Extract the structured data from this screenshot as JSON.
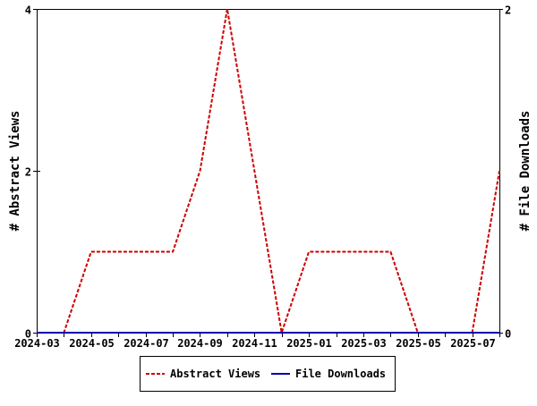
{
  "chart_data": {
    "type": "line",
    "title": "",
    "x": [
      "2024-03",
      "2024-04",
      "2024-05",
      "2024-06",
      "2024-07",
      "2024-08",
      "2024-09",
      "2024-10",
      "2024-11",
      "2024-12",
      "2025-01",
      "2025-02",
      "2025-03",
      "2025-04",
      "2025-05",
      "2025-06",
      "2025-07",
      "2025-08"
    ],
    "x_tick_labels": [
      "2024-03",
      "2024-05",
      "2024-07",
      "2024-09",
      "2024-11",
      "2025-01",
      "2025-03",
      "2025-05",
      "2025-07"
    ],
    "ylabel": "# Abstract Views",
    "y2label": "# File Downloads",
    "ylim": [
      0,
      4
    ],
    "y2lim": [
      0,
      2
    ],
    "y_ticks": [
      "0",
      "2",
      "4"
    ],
    "y2_ticks": [
      "0",
      "2"
    ],
    "grid": false,
    "legend_placement": "bottom",
    "series": [
      {
        "name": "Abstract Views",
        "axis": "left",
        "color": "#cc0000",
        "style": "dashed",
        "values": [
          0,
          0,
          1,
          1,
          1,
          1,
          2,
          4,
          2,
          0,
          1,
          1,
          1,
          1,
          0,
          0,
          0,
          2
        ]
      },
      {
        "name": "File Downloads",
        "axis": "right",
        "color": "#0000aa",
        "style": "solid",
        "values": [
          0,
          0,
          0,
          0,
          0,
          0,
          0,
          0,
          0,
          0,
          0,
          0,
          0,
          0,
          0,
          0,
          0,
          0
        ]
      }
    ]
  }
}
